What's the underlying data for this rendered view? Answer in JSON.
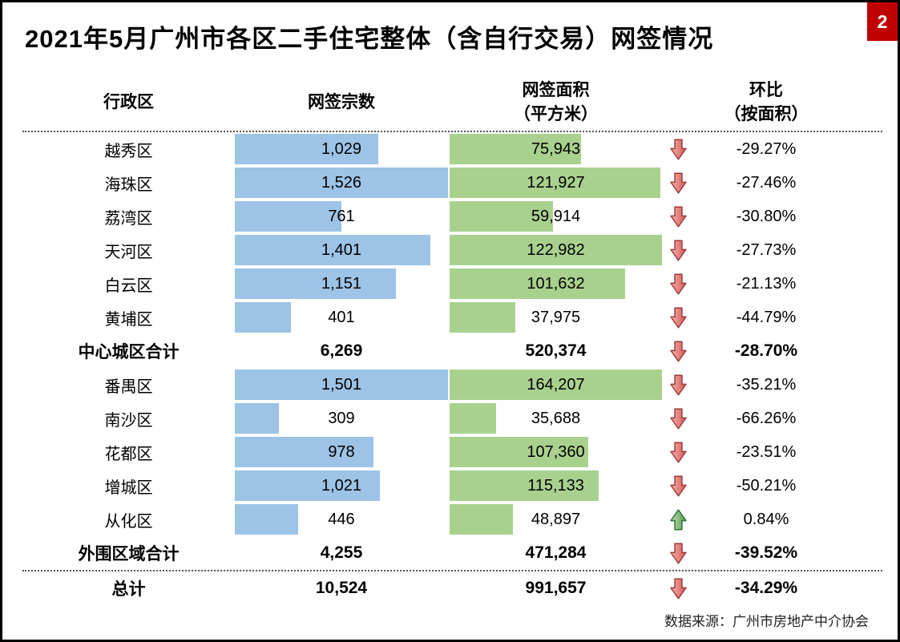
{
  "page": {
    "badge": "2",
    "title": "2021年5月广州市各区二手住宅整体（含自行交易）网签情况",
    "source_note": "数据来源：广州市房地产中介协会"
  },
  "colors": {
    "bar_blue": "#9DC3E6",
    "bar_green": "#A9D18E",
    "badge_red": "#C00000",
    "arrow_down_light": "#F5B4B0",
    "arrow_down_dark": "#D45553",
    "arrow_down_stroke": "#9C3A38",
    "arrow_up_light": "#C5E2B8",
    "arrow_up_dark": "#4C9B4F",
    "arrow_up_stroke": "#2F6E33"
  },
  "table": {
    "header": {
      "region": "行政区",
      "count": "网签宗数",
      "area_line1": "网签面积",
      "area_line2": "（平方米）",
      "mom_line1": "环比",
      "mom_line2": "（按面积）"
    },
    "rows": [
      {
        "region": "越秀区",
        "count": "1,029",
        "count_value": 1029,
        "area": "75,943",
        "area_value": 75943,
        "trend": "down",
        "mom": "-29.27%",
        "type": "district",
        "group": "core"
      },
      {
        "region": "海珠区",
        "count": "1,526",
        "count_value": 1526,
        "area": "121,927",
        "area_value": 121927,
        "trend": "down",
        "mom": "-27.46%",
        "type": "district",
        "group": "core"
      },
      {
        "region": "荔湾区",
        "count": "761",
        "count_value": 761,
        "area": "59,914",
        "area_value": 59914,
        "trend": "down",
        "mom": "-30.80%",
        "type": "district",
        "group": "core"
      },
      {
        "region": "天河区",
        "count": "1,401",
        "count_value": 1401,
        "area": "122,982",
        "area_value": 122982,
        "trend": "down",
        "mom": "-27.73%",
        "type": "district",
        "group": "core"
      },
      {
        "region": "白云区",
        "count": "1,151",
        "count_value": 1151,
        "area": "101,632",
        "area_value": 101632,
        "trend": "down",
        "mom": "-21.13%",
        "type": "district",
        "group": "core"
      },
      {
        "region": "黄埔区",
        "count": "401",
        "count_value": 401,
        "area": "37,975",
        "area_value": 37975,
        "trend": "down",
        "mom": "-44.79%",
        "type": "district",
        "group": "core"
      },
      {
        "region": "中心城区合计",
        "count": "6,269",
        "count_value": 6269,
        "area": "520,374",
        "area_value": 520374,
        "trend": "down",
        "mom": "-28.70%",
        "type": "summary",
        "group": "core"
      },
      {
        "region": "番禺区",
        "count": "1,501",
        "count_value": 1501,
        "area": "164,207",
        "area_value": 164207,
        "trend": "down",
        "mom": "-35.21%",
        "type": "district",
        "group": "outer"
      },
      {
        "region": "南沙区",
        "count": "309",
        "count_value": 309,
        "area": "35,688",
        "area_value": 35688,
        "trend": "down",
        "mom": "-66.26%",
        "type": "district",
        "group": "outer"
      },
      {
        "region": "花都区",
        "count": "978",
        "count_value": 978,
        "area": "107,360",
        "area_value": 107360,
        "trend": "down",
        "mom": "-23.51%",
        "type": "district",
        "group": "outer"
      },
      {
        "region": "增城区",
        "count": "1,021",
        "count_value": 1021,
        "area": "115,133",
        "area_value": 115133,
        "trend": "down",
        "mom": "-50.21%",
        "type": "district",
        "group": "outer"
      },
      {
        "region": "从化区",
        "count": "446",
        "count_value": 446,
        "area": "48,897",
        "area_value": 48897,
        "trend": "up",
        "mom": "0.84%",
        "type": "district",
        "group": "outer"
      },
      {
        "region": "外围区域合计",
        "count": "4,255",
        "count_value": 4255,
        "area": "471,284",
        "area_value": 471284,
        "trend": "down",
        "mom": "-39.52%",
        "type": "summary",
        "group": "outer"
      },
      {
        "region": "总计",
        "count": "10,524",
        "count_value": 10524,
        "area": "991,657",
        "area_value": 991657,
        "trend": "down",
        "mom": "-34.29%",
        "type": "summary",
        "group": "total",
        "separator_above": true
      }
    ]
  },
  "chart_data": {
    "type": "table",
    "title": "2021年5月广州市各区二手住宅整体（含自行交易）网签情况",
    "columns": [
      "行政区",
      "网签宗数",
      "网签面积（平方米）",
      "环比（按面积）"
    ],
    "categories": [
      "越秀区",
      "海珠区",
      "荔湾区",
      "天河区",
      "白云区",
      "黄埔区",
      "中心城区合计",
      "番禺区",
      "南沙区",
      "花都区",
      "增城区",
      "从化区",
      "外围区域合计",
      "总计"
    ],
    "series": [
      {
        "name": "网签宗数",
        "style": "blue-data-bar",
        "values": [
          1029,
          1526,
          761,
          1401,
          1151,
          401,
          6269,
          1501,
          309,
          978,
          1021,
          446,
          4255,
          10524
        ]
      },
      {
        "name": "网签面积（平方米）",
        "style": "green-data-bar",
        "values": [
          75943,
          121927,
          59914,
          122982,
          101632,
          37975,
          520374,
          164207,
          35688,
          107360,
          115133,
          48897,
          471284,
          991657
        ]
      },
      {
        "name": "环比（按面积）",
        "style": "trend-arrow-and-percent",
        "values": [
          -29.27,
          -27.46,
          -30.8,
          -27.73,
          -21.13,
          -44.79,
          -28.7,
          -35.21,
          -66.26,
          -23.51,
          -50.21,
          0.84,
          -39.52,
          -34.29
        ]
      }
    ],
    "notes": "数据来源：广州市房地产中介协会；数据条按各分组（中心城区/外围区域）内最大值满格比例绘制；下降为红色下箭头，上升为绿色上箭头"
  }
}
